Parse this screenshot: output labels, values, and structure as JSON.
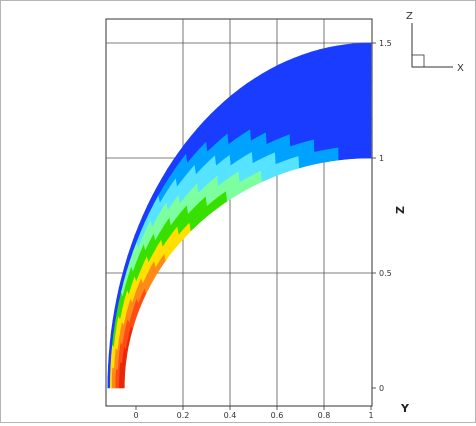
{
  "chart_data": {
    "type": "heatmap",
    "title": "",
    "xlabel": "Y",
    "ylabel": "Z",
    "xlim": [
      -0.15,
      1.0
    ],
    "ylim": [
      0,
      1.5
    ],
    "x_tick_labels": [
      "0",
      "0.2",
      "0.4",
      "0.6",
      "0.8",
      "1"
    ],
    "x_tick_values": [
      0,
      0.2,
      0.4,
      0.6,
      0.8,
      1
    ],
    "y_tick_labels": [
      "0",
      "0.5",
      "1",
      "1.5"
    ],
    "y_tick_values": [
      0,
      0.5,
      1,
      1.5
    ],
    "grid": true,
    "domain": {
      "shape": "annular quarter region",
      "inner_boundary": {
        "x_at_base": -0.05,
        "z_at_top": 1.0
      },
      "outer_boundary": {
        "x_at_base": -0.12,
        "z_at_top": 1.5
      },
      "x_end": 1.0
    },
    "colormap": [
      "#1a3cff",
      "#00a2ff",
      "#56e3ff",
      "#7dffa0",
      "#38e000",
      "#ffe000",
      "#ff8a1a",
      "#ff4c17",
      "#e8280a"
    ],
    "axis_triad": {
      "labels": [
        "Z",
        "X"
      ]
    }
  }
}
